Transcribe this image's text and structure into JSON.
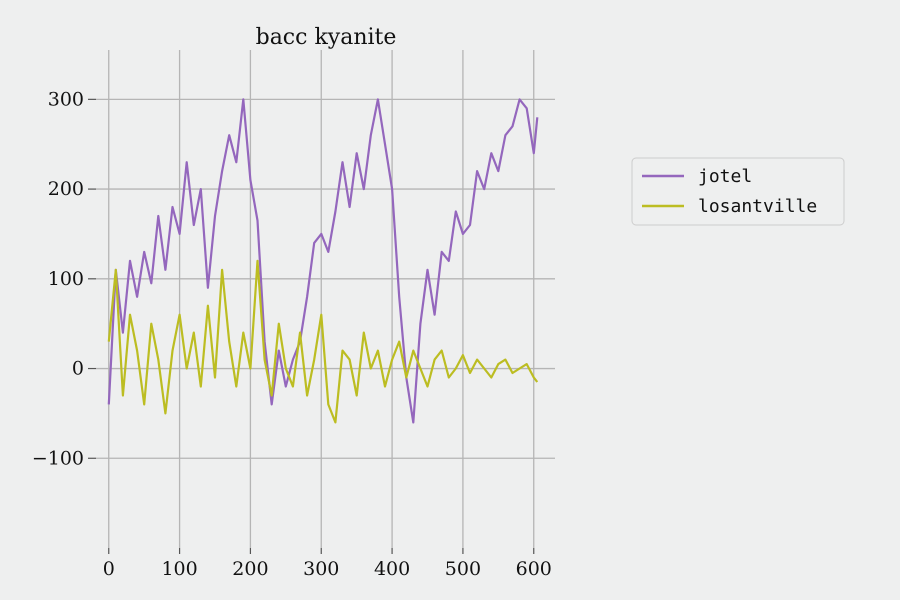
{
  "chart_data": {
    "type": "line",
    "title": "bacc kyanite",
    "xlabel": "",
    "ylabel": "",
    "xlim": [
      -18,
      630
    ],
    "ylim": [
      -200,
      355
    ],
    "xticks": [
      0,
      100,
      200,
      300,
      400,
      500,
      600
    ],
    "yticks": [
      -100,
      0,
      100,
      200,
      300
    ],
    "xtick_labels": [
      "0",
      "100",
      "200",
      "300",
      "400",
      "500",
      "600"
    ],
    "ytick_labels": [
      "−100",
      "0",
      "100",
      "200",
      "300"
    ],
    "grid": true,
    "legend": "right",
    "series": [
      {
        "name": "jotel",
        "color": "#9467bd",
        "x": [
          0,
          10,
          20,
          30,
          40,
          50,
          60,
          70,
          80,
          90,
          100,
          110,
          120,
          130,
          140,
          150,
          160,
          170,
          180,
          190,
          200,
          210,
          220,
          230,
          240,
          250,
          260,
          270,
          280,
          290,
          300,
          310,
          320,
          330,
          340,
          350,
          360,
          370,
          380,
          390,
          400,
          410,
          420,
          430,
          440,
          450,
          460,
          470,
          480,
          490,
          500,
          510,
          520,
          530,
          540,
          550,
          560,
          570,
          580,
          590,
          600,
          605
        ],
        "values": [
          -40,
          110,
          40,
          120,
          80,
          130,
          95,
          170,
          110,
          180,
          150,
          230,
          160,
          200,
          90,
          170,
          220,
          260,
          230,
          300,
          210,
          165,
          30,
          -40,
          20,
          -20,
          10,
          30,
          80,
          140,
          150,
          130,
          175,
          230,
          180,
          240,
          200,
          260,
          300,
          250,
          200,
          80,
          -10,
          -60,
          50,
          110,
          60,
          130,
          120,
          175,
          150,
          160,
          220,
          200,
          240,
          220,
          260,
          270,
          300,
          290,
          240,
          280
        ]
      },
      {
        "name": "losantville",
        "color": "#bcbd22",
        "x": [
          0,
          10,
          20,
          30,
          40,
          50,
          60,
          70,
          80,
          90,
          100,
          110,
          120,
          130,
          140,
          150,
          160,
          170,
          180,
          190,
          200,
          210,
          220,
          230,
          240,
          250,
          260,
          270,
          280,
          290,
          300,
          310,
          320,
          330,
          340,
          350,
          360,
          370,
          380,
          390,
          400,
          410,
          420,
          430,
          440,
          450,
          460,
          470,
          480,
          490,
          500,
          510,
          520,
          530,
          540,
          550,
          560,
          570,
          580,
          590,
          600,
          605
        ],
        "values": [
          30,
          110,
          -30,
          60,
          20,
          -40,
          50,
          10,
          -50,
          20,
          60,
          0,
          40,
          -20,
          70,
          -10,
          110,
          30,
          -20,
          40,
          0,
          120,
          10,
          -30,
          50,
          0,
          -20,
          40,
          -30,
          10,
          60,
          -40,
          -60,
          20,
          10,
          -30,
          40,
          0,
          20,
          -20,
          10,
          30,
          -10,
          20,
          0,
          -20,
          10,
          20,
          -10,
          0,
          15,
          -5,
          10,
          0,
          -10,
          5,
          10,
          -5,
          0,
          5,
          -10,
          -15
        ]
      }
    ]
  }
}
